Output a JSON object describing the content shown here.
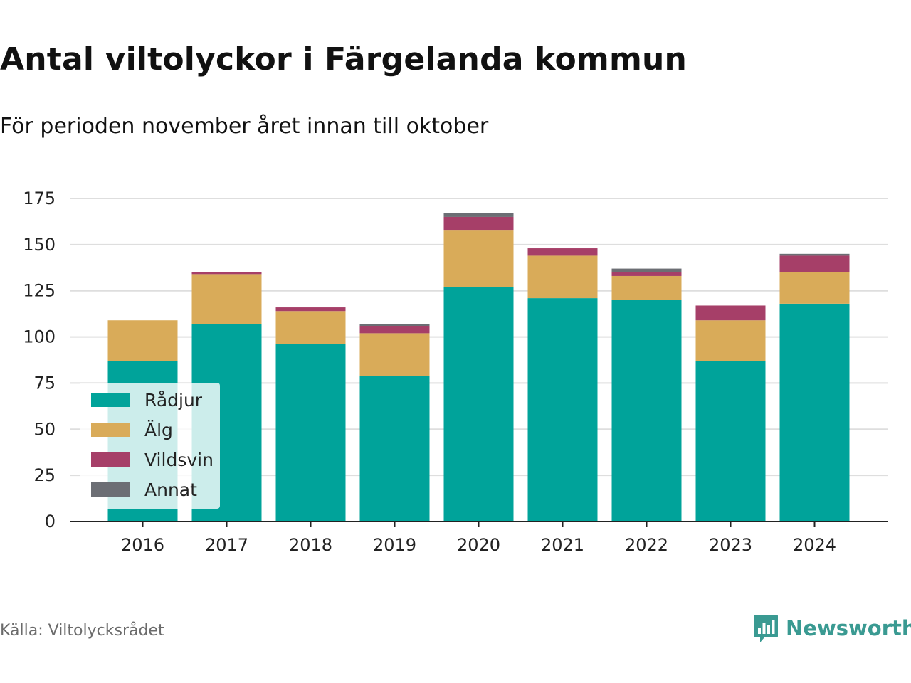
{
  "title": "Antal viltolyckor i Färgelanda kommun",
  "subtitle": "För perioden november året innan till oktober",
  "source": "Källa: Viltolycksrådet",
  "brand": {
    "name": "Newsworthy",
    "color": "#3a9a92",
    "icon": "newsworthy-logo-icon"
  },
  "chart_data": {
    "type": "bar",
    "stacked": true,
    "categories": [
      "2016",
      "2017",
      "2018",
      "2019",
      "2020",
      "2021",
      "2022",
      "2023",
      "2024"
    ],
    "series": [
      {
        "name": "Rådjur",
        "color": "#00a39a",
        "values": [
          87,
          107,
          96,
          79,
          127,
          121,
          120,
          87,
          118
        ]
      },
      {
        "name": "Älg",
        "color": "#d9ab59",
        "values": [
          22,
          27,
          18,
          23,
          31,
          23,
          13,
          22,
          17
        ]
      },
      {
        "name": "Vildsvin",
        "color": "#a63f68",
        "values": [
          0,
          1,
          2,
          4,
          7,
          4,
          2,
          8,
          9
        ]
      },
      {
        "name": "Annat",
        "color": "#6c6e74",
        "values": [
          0,
          0,
          0,
          1,
          2,
          0,
          2,
          0,
          1
        ]
      }
    ],
    "yticks": [
      0,
      25,
      50,
      75,
      100,
      125,
      150,
      175
    ],
    "ylim": [
      0,
      175
    ],
    "grid": true,
    "legend_position": "bottom-left"
  }
}
